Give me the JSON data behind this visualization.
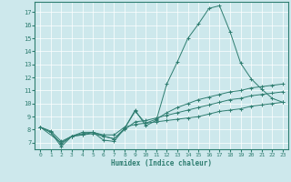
{
  "xlabel": "Humidex (Indice chaleur)",
  "background_color": "#cde8ec",
  "line_color": "#2e7d70",
  "grid_color": "#b0d4d8",
  "xlim": [
    -0.5,
    23.5
  ],
  "ylim": [
    6.5,
    17.8
  ],
  "yticks": [
    7,
    8,
    9,
    10,
    11,
    12,
    13,
    14,
    15,
    16,
    17
  ],
  "xticks": [
    0,
    1,
    2,
    3,
    4,
    5,
    6,
    7,
    8,
    9,
    10,
    11,
    12,
    13,
    14,
    15,
    16,
    17,
    18,
    19,
    20,
    21,
    22,
    23
  ],
  "lines": [
    {
      "x": [
        0,
        1,
        2,
        3,
        4,
        5,
        6,
        7,
        8,
        9,
        10,
        11,
        12,
        13,
        14,
        15,
        16,
        17,
        18,
        19,
        20,
        21,
        22,
        23
      ],
      "y": [
        8.2,
        7.8,
        6.7,
        7.5,
        7.8,
        7.8,
        7.2,
        7.1,
        8.1,
        9.5,
        8.3,
        8.7,
        11.5,
        13.2,
        15.0,
        16.1,
        17.3,
        17.5,
        15.5,
        13.1,
        11.9,
        11.1,
        10.4,
        10.1
      ]
    },
    {
      "x": [
        0,
        2,
        3,
        4,
        5,
        6,
        7,
        8,
        9,
        10,
        11,
        12,
        13,
        14,
        15,
        16,
        17,
        18,
        19,
        20,
        21,
        22,
        23
      ],
      "y": [
        8.2,
        7.0,
        7.5,
        7.6,
        7.8,
        7.5,
        7.3,
        8.1,
        9.4,
        8.5,
        8.8,
        9.3,
        9.7,
        10.0,
        10.3,
        10.5,
        10.7,
        10.9,
        11.0,
        11.2,
        11.3,
        11.4,
        11.5
      ]
    },
    {
      "x": [
        0,
        1,
        2,
        3,
        4,
        5,
        6,
        7,
        8,
        9,
        10,
        11,
        12,
        13,
        14,
        15,
        16,
        17,
        18,
        19,
        20,
        21,
        22,
        23
      ],
      "y": [
        8.2,
        7.8,
        6.9,
        7.5,
        7.6,
        7.7,
        7.5,
        7.3,
        8.0,
        8.6,
        8.7,
        8.9,
        9.1,
        9.3,
        9.5,
        9.7,
        9.9,
        10.1,
        10.3,
        10.4,
        10.6,
        10.7,
        10.8,
        10.9
      ]
    },
    {
      "x": [
        0,
        1,
        2,
        3,
        4,
        5,
        6,
        7,
        8,
        9,
        10,
        11,
        12,
        13,
        14,
        15,
        16,
        17,
        18,
        19,
        20,
        21,
        22,
        23
      ],
      "y": [
        8.2,
        7.9,
        7.1,
        7.5,
        7.7,
        7.8,
        7.6,
        7.6,
        8.2,
        8.4,
        8.5,
        8.6,
        8.7,
        8.8,
        8.9,
        9.0,
        9.2,
        9.4,
        9.5,
        9.6,
        9.8,
        9.9,
        10.0,
        10.1
      ]
    }
  ]
}
